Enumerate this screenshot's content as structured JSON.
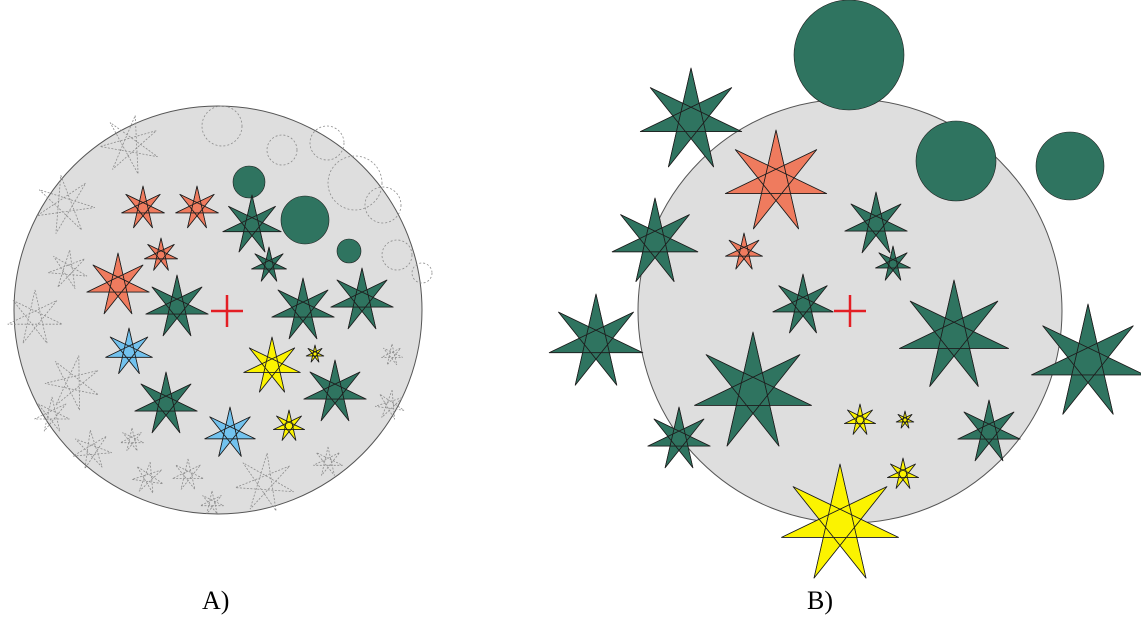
{
  "colors": {
    "disc": "#dedede",
    "green": "#2f7460",
    "orange": "#ef7b5e",
    "yellow": "#fbf300",
    "blue": "#72c2ee",
    "marker": "#e31e24",
    "ghost_stroke": "#8c8c8c"
  },
  "panels": [
    {
      "id": "A",
      "label": "A)",
      "has_ghosts": true
    },
    {
      "id": "B",
      "label": "B)",
      "has_ghosts": false
    }
  ],
  "icons": {
    "star": "seven-pointed-star-icon",
    "planet": "circle-icon",
    "center": "cross-marker-icon"
  }
}
